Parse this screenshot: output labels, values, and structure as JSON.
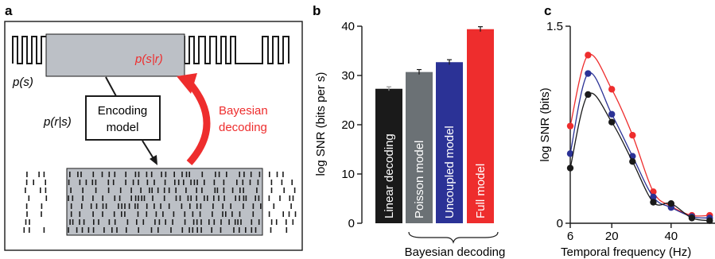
{
  "panels": {
    "a": {
      "letter": "a",
      "stimulus_label": "p(s)",
      "posterior_label": "p(s|r)",
      "encoding_label": "p(r|s)",
      "encoding_box_line1": "Encoding",
      "encoding_box_line2": "model",
      "decoding_line1": "Bayesian",
      "decoding_line2": "decoding"
    },
    "b": {
      "letter": "b",
      "bracket_label": "Bayesian decoding"
    },
    "c": {
      "letter": "c"
    }
  },
  "colors": {
    "black": "#1a1a1a",
    "gray": "#6b7175",
    "blue": "#2b3296",
    "red": "#ee2d2d",
    "box_fill": "#bcc0c6"
  },
  "chart_data": [
    {
      "type": "bar",
      "panel": "b",
      "categories": [
        "Linear decoding",
        "Poisson model",
        "Uncoupled model",
        "Full model"
      ],
      "values": [
        27.3,
        30.7,
        32.7,
        39.4
      ],
      "errors": [
        0.4,
        0.5,
        0.5,
        0.5
      ],
      "colors": [
        "#1a1a1a",
        "#6b7175",
        "#2b3296",
        "#ee2d2d"
      ],
      "ylabel": "log SNR (bits per s)",
      "ylim": [
        0,
        40
      ],
      "yticks": [
        0,
        10,
        20,
        30,
        40
      ],
      "grid": false
    },
    {
      "type": "line",
      "panel": "c",
      "xlabel": "Temporal frequency (Hz)",
      "ylabel": "log SNR (bits)",
      "xlim": [
        6,
        56
      ],
      "ylim": [
        0,
        1.5
      ],
      "xticks": [
        6,
        20,
        40
      ],
      "yticks": [
        0,
        1.5
      ],
      "series": [
        {
          "color": "#ee2d2d",
          "x": [
            6,
            12,
            20,
            27,
            34,
            40,
            47,
            53
          ],
          "y": [
            0.74,
            1.28,
            1.02,
            0.67,
            0.24,
            0.13,
            0.06,
            0.06
          ]
        },
        {
          "color": "#2b3296",
          "x": [
            6,
            12,
            20,
            27,
            34,
            40,
            47,
            53
          ],
          "y": [
            0.53,
            1.14,
            0.83,
            0.51,
            0.2,
            0.12,
            0.05,
            0.04
          ]
        },
        {
          "color": "#1a1a1a",
          "x": [
            6,
            12,
            20,
            27,
            34,
            40,
            47,
            53
          ],
          "y": [
            0.42,
            0.98,
            0.77,
            0.47,
            0.16,
            0.15,
            0.04,
            0.02
          ]
        }
      ]
    }
  ]
}
